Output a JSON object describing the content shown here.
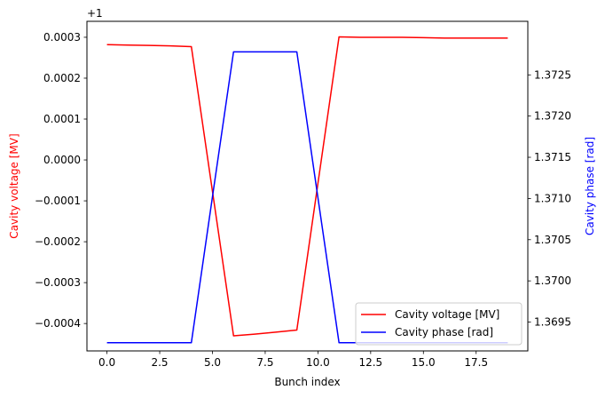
{
  "chart_data": {
    "type": "line",
    "xlabel": "Bunch index",
    "x_ticks": [
      "0.0",
      "2.5",
      "5.0",
      "7.5",
      "10.0",
      "12.5",
      "15.0",
      "17.5"
    ],
    "x_tick_values": [
      0,
      2.5,
      5,
      7.5,
      10,
      12.5,
      15,
      17.5
    ],
    "xlim": [
      -0.95,
      19.95
    ],
    "left_axis": {
      "label": "Cavity voltage [MV]",
      "color": "#ff0000",
      "offset_text": "+1",
      "ticks": [
        "0.0003",
        "0.0002",
        "0.0001",
        "0.0000",
        "−0.0001",
        "−0.0002",
        "−0.0003",
        "−0.0004"
      ],
      "tick_values": [
        0.0003,
        0.0002,
        0.0001,
        0.0,
        -0.0001,
        -0.0002,
        -0.0003,
        -0.0004
      ],
      "ylim": [
        -0.000467,
        0.000339
      ]
    },
    "right_axis": {
      "label": "Cavity phase [rad]",
      "color": "#0000ff",
      "ticks": [
        "1.3725",
        "1.3720",
        "1.3715",
        "1.3710",
        "1.3705",
        "1.3700",
        "1.3695"
      ],
      "tick_values": [
        1.3725,
        1.372,
        1.3715,
        1.371,
        1.3705,
        1.37,
        1.3695
      ],
      "ylim": [
        1.36915,
        1.37315
      ]
    },
    "series": [
      {
        "name": "Cavity voltage [MV]",
        "axis": "left",
        "color": "#ff0000",
        "x": [
          0,
          1,
          2,
          3,
          4,
          5,
          6,
          7,
          8,
          9,
          10,
          11,
          12,
          13,
          14,
          15,
          16,
          17,
          18,
          19
        ],
        "values": [
          0.000282,
          0.000281,
          0.00028,
          0.000279,
          0.000277,
          -7.65e-05,
          -0.00043,
          -0.000426,
          -0.000421,
          -0.000416,
          -5.75e-05,
          0.000301,
          0.0003,
          0.0003,
          0.0003,
          0.000299,
          0.000298,
          0.000298,
          0.000298,
          0.000298
        ]
      },
      {
        "name": "Cavity phase [rad]",
        "axis": "right",
        "color": "#0000ff",
        "x": [
          0,
          1,
          2,
          3,
          4,
          5,
          6,
          7,
          8,
          9,
          10,
          11,
          12,
          13,
          14,
          15,
          16,
          17,
          18,
          19
        ],
        "values": [
          1.36925,
          1.36925,
          1.36925,
          1.36925,
          1.36925,
          1.37102,
          1.37278,
          1.37278,
          1.37278,
          1.37278,
          1.37101,
          1.36925,
          1.36925,
          1.36925,
          1.36925,
          1.36925,
          1.36925,
          1.36925,
          1.36925,
          1.36925
        ]
      }
    ],
    "legend_placement": "lower-right",
    "grid": false
  }
}
